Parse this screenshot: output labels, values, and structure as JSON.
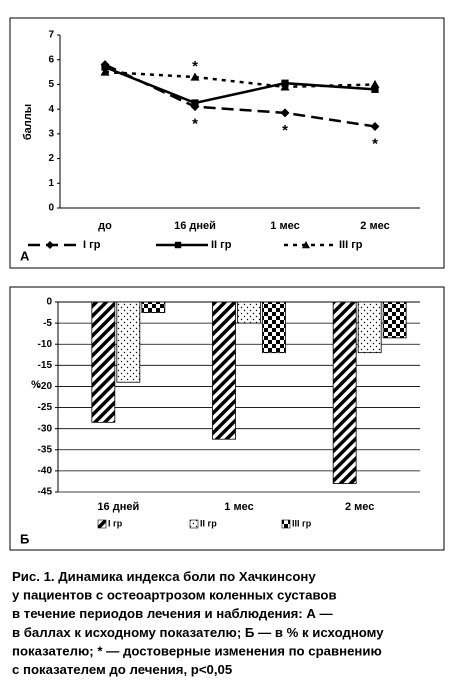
{
  "chart_data": [
    {
      "type": "line",
      "label": "А",
      "y_label": "баллы",
      "categories": [
        "до",
        "16 дней",
        "1 мес",
        "2 мес"
      ],
      "ylim": [
        0,
        7
      ],
      "yticks": [
        0,
        1,
        2,
        3,
        4,
        5,
        6,
        7
      ],
      "grid": false,
      "series": [
        {
          "name": "I гр",
          "color": "#000000",
          "dash": "long",
          "marker": "diamond",
          "values": [
            5.8,
            4.1,
            3.85,
            3.3
          ]
        },
        {
          "name": "II гр",
          "color": "#000000",
          "dash": "solid",
          "marker": "square",
          "values": [
            5.7,
            4.25,
            5.05,
            4.8
          ]
        },
        {
          "name": "III гр",
          "color": "#000000",
          "dash": "short",
          "marker": "triangle",
          "values": [
            5.5,
            5.3,
            4.9,
            5.0
          ]
        }
      ],
      "annotations": [
        {
          "text": "*",
          "category": "16 дней",
          "series": "III гр",
          "side": "above"
        },
        {
          "text": "*",
          "category": "16 дней",
          "series": "I гр",
          "side": "below"
        },
        {
          "text": "*",
          "category": "1 мес",
          "series": "I гр",
          "side": "below"
        },
        {
          "text": "*",
          "category": "2 мес",
          "series": "I гр",
          "side": "below"
        }
      ]
    },
    {
      "type": "bar",
      "label": "Б",
      "y_label": "%",
      "categories": [
        "16 дней",
        "1 мес",
        "2 мес"
      ],
      "ylim": [
        -45,
        0
      ],
      "yticks": [
        0,
        -5,
        -10,
        -15,
        -20,
        -25,
        -30,
        -35,
        -40,
        -45
      ],
      "grid": true,
      "series": [
        {
          "name": "I гр",
          "pattern": "diagonal",
          "values": [
            -28.5,
            -32.5,
            -43
          ]
        },
        {
          "name": "II гр",
          "pattern": "dots",
          "values": [
            -19,
            -5,
            -12
          ]
        },
        {
          "name": "III гр",
          "pattern": "checker",
          "values": [
            -2.5,
            -12,
            -8.5
          ]
        }
      ]
    }
  ],
  "caption": {
    "lines": [
      "Рис. 1. Динамика индекса боли по Хачкинсону",
      "у пациентов с остеоартрозом коленных суставов",
      "в течение периодов лечения и наблюдения: А —",
      "в баллах к исходному показателю; Б — в % к исходному",
      "показателю; * — достоверные изменения по сравнению",
      "с показателем до лечения, p<0,05"
    ]
  }
}
